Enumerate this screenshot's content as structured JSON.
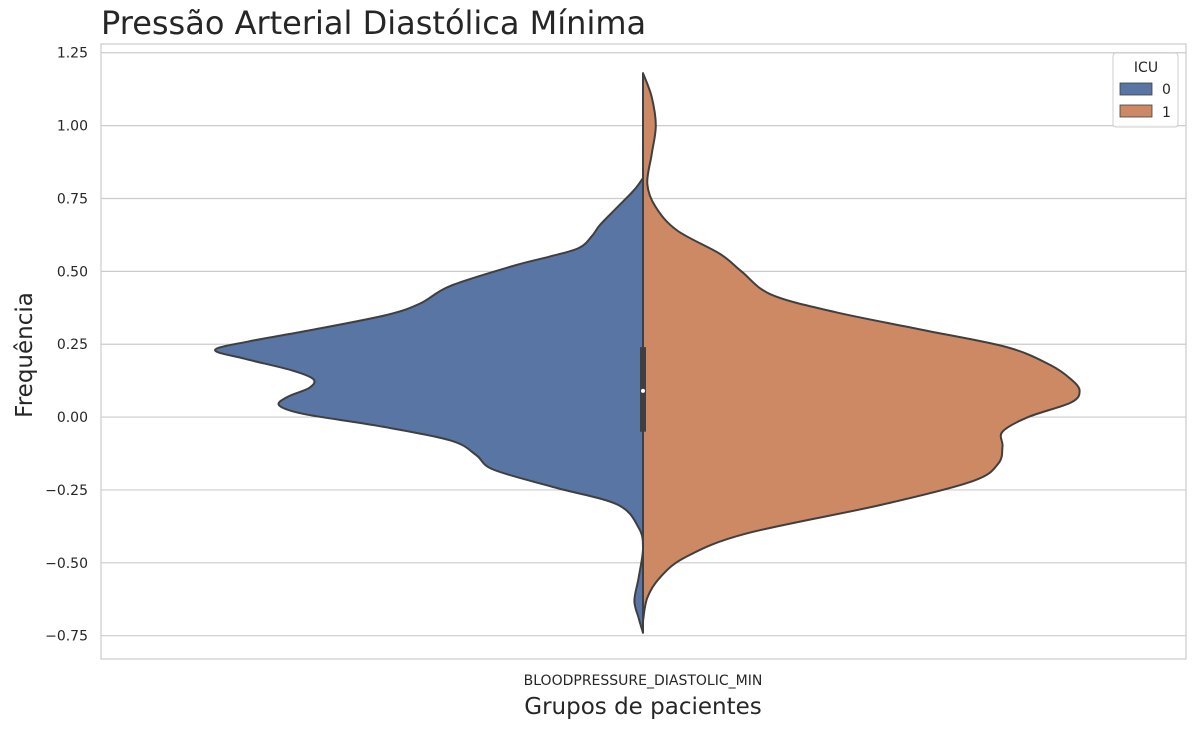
{
  "chart_data": {
    "type": "violin",
    "split": true,
    "title": "Pressão Arterial Diastólica Mínima",
    "xlabel": "Grupos de pacientes",
    "ylabel": "Frequência",
    "categories": [
      "BLOODPRESSURE_DIASTOLIC_MIN"
    ],
    "ylim": [
      -0.83,
      1.28
    ],
    "yticks": [
      "1.25",
      "1.00",
      "0.75",
      "0.50",
      "0.25",
      "0.00",
      "−0.25",
      "−0.50",
      "−0.75"
    ],
    "ytick_values": [
      1.25,
      1.0,
      0.75,
      0.5,
      0.25,
      0.0,
      -0.25,
      -0.5,
      -0.75
    ],
    "grid": true,
    "legend": {
      "title": "ICU",
      "position": "top-right",
      "entries": [
        "0",
        "1"
      ]
    },
    "series": [
      {
        "name": "0",
        "side": "left",
        "color": "#5975a4",
        "density_profile": [
          [
            0.82,
            0.0
          ],
          [
            0.78,
            0.02
          ],
          [
            0.72,
            0.06
          ],
          [
            0.66,
            0.1
          ],
          [
            0.62,
            0.12
          ],
          [
            0.58,
            0.15
          ],
          [
            0.55,
            0.22
          ],
          [
            0.52,
            0.3
          ],
          [
            0.45,
            0.45
          ],
          [
            0.39,
            0.52
          ],
          [
            0.35,
            0.6
          ],
          [
            0.3,
            0.77
          ],
          [
            0.26,
            0.92
          ],
          [
            0.23,
            1.0
          ],
          [
            0.2,
            0.93
          ],
          [
            0.16,
            0.82
          ],
          [
            0.13,
            0.77
          ],
          [
            0.1,
            0.78
          ],
          [
            0.07,
            0.83
          ],
          [
            0.04,
            0.85
          ],
          [
            0.01,
            0.79
          ],
          [
            -0.03,
            0.62
          ],
          [
            -0.08,
            0.45
          ],
          [
            -0.13,
            0.39
          ],
          [
            -0.18,
            0.35
          ],
          [
            -0.24,
            0.21
          ],
          [
            -0.3,
            0.06
          ],
          [
            -0.38,
            0.01
          ],
          [
            -0.45,
            0.0
          ],
          [
            -0.55,
            0.01
          ],
          [
            -0.63,
            0.02
          ],
          [
            -0.69,
            0.01
          ],
          [
            -0.74,
            0.0
          ]
        ]
      },
      {
        "name": "1",
        "side": "right",
        "color": "#cc8963",
        "density_profile": [
          [
            1.18,
            0.0
          ],
          [
            1.1,
            0.02
          ],
          [
            1.0,
            0.03
          ],
          [
            0.9,
            0.02
          ],
          [
            0.8,
            0.01
          ],
          [
            0.72,
            0.03
          ],
          [
            0.64,
            0.08
          ],
          [
            0.56,
            0.18
          ],
          [
            0.5,
            0.23
          ],
          [
            0.42,
            0.3
          ],
          [
            0.36,
            0.45
          ],
          [
            0.3,
            0.65
          ],
          [
            0.24,
            0.85
          ],
          [
            0.18,
            0.95
          ],
          [
            0.13,
            1.0
          ],
          [
            0.09,
            1.02
          ],
          [
            0.05,
            1.0
          ],
          [
            0.0,
            0.9
          ],
          [
            -0.05,
            0.84
          ],
          [
            -0.1,
            0.84
          ],
          [
            -0.16,
            0.83
          ],
          [
            -0.22,
            0.77
          ],
          [
            -0.3,
            0.56
          ],
          [
            -0.4,
            0.24
          ],
          [
            -0.48,
            0.1
          ],
          [
            -0.55,
            0.04
          ],
          [
            -0.62,
            0.01
          ],
          [
            -0.7,
            0.0
          ]
        ]
      }
    ],
    "inner_box": {
      "q1": -0.05,
      "median": 0.09,
      "q3": 0.24,
      "whisker_low": -0.7,
      "whisker_high": 0.64
    }
  }
}
